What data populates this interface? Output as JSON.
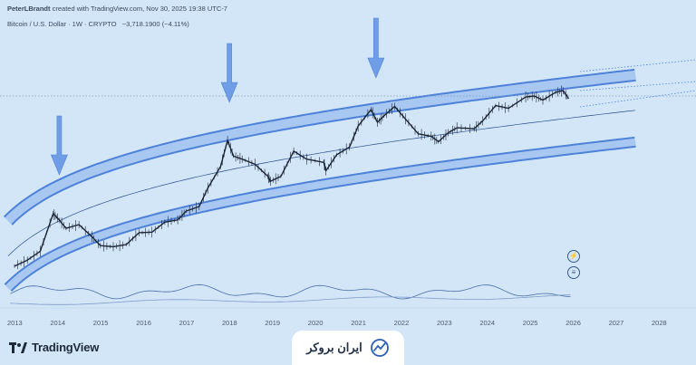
{
  "header": {
    "author": "PeterLBrandt",
    "created_text": "created with TradingView.com, Nov 30, 2025 19:38 UTC-7",
    "symbol_line": "Bitcoin / U.S. Dollar · 1W · CRYPTO",
    "change_value": "−3,718.1900 (−4.11%)"
  },
  "brand": {
    "name": "TradingView"
  },
  "watermark": {
    "name": "ایران بروکر"
  },
  "icons": [
    "lightning-icon",
    "globe-icon",
    "tradingview-logo-icon",
    "arrow-down-icon"
  ],
  "colors": {
    "background": "#d3e6f8",
    "band": "#4d82d8",
    "price": "#1b2535",
    "arrow": "#6f9ee6",
    "oscillator": "#5577b0"
  },
  "chart_data": {
    "type": "line",
    "title": "",
    "xlabel": "",
    "ylabel": "",
    "scale": "log",
    "x_ticks": [
      "2013",
      "2014",
      "2015",
      "2016",
      "2017",
      "2018",
      "2019",
      "2020",
      "2021",
      "2022",
      "2023",
      "2024",
      "2025",
      "2026",
      "2027",
      "2028"
    ],
    "series": [
      {
        "values": [
          [
            2013.0,
            110
          ],
          [
            2013.3,
            140
          ],
          [
            2013.6,
            200
          ],
          [
            2013.9,
            900
          ],
          [
            2014.0,
            760
          ],
          [
            2014.2,
            500
          ],
          [
            2014.5,
            580
          ],
          [
            2014.8,
            360
          ],
          [
            2015.0,
            250
          ],
          [
            2015.3,
            240
          ],
          [
            2015.6,
            260
          ],
          [
            2015.9,
            420
          ],
          [
            2016.2,
            430
          ],
          [
            2016.5,
            640
          ],
          [
            2016.8,
            700
          ],
          [
            2017.0,
            1000
          ],
          [
            2017.3,
            1200
          ],
          [
            2017.5,
            2500
          ],
          [
            2017.8,
            6000
          ],
          [
            2017.96,
            17000
          ],
          [
            2018.1,
            9000
          ],
          [
            2018.3,
            8000
          ],
          [
            2018.6,
            6500
          ],
          [
            2018.9,
            4000
          ],
          [
            2018.96,
            3300
          ],
          [
            2019.2,
            4000
          ],
          [
            2019.5,
            11000
          ],
          [
            2019.8,
            8000
          ],
          [
            2020.2,
            7000
          ],
          [
            2020.25,
            5000
          ],
          [
            2020.5,
            9500
          ],
          [
            2020.8,
            13000
          ],
          [
            2021.0,
            30000
          ],
          [
            2021.3,
            58000
          ],
          [
            2021.45,
            35000
          ],
          [
            2021.6,
            45000
          ],
          [
            2021.85,
            66000
          ],
          [
            2022.1,
            40000
          ],
          [
            2022.4,
            22000
          ],
          [
            2022.7,
            20000
          ],
          [
            2022.87,
            16000
          ],
          [
            2023.1,
            23000
          ],
          [
            2023.3,
            28000
          ],
          [
            2023.7,
            27000
          ],
          [
            2023.9,
            37000
          ],
          [
            2024.2,
            68000
          ],
          [
            2024.5,
            61000
          ],
          [
            2024.9,
            96000
          ],
          [
            2025.1,
            100000
          ],
          [
            2025.3,
            85000
          ],
          [
            2025.6,
            116000
          ],
          [
            2025.77,
            124000
          ],
          [
            2025.9,
            90000
          ]
        ]
      }
    ],
    "annotations": [
      "arrow down at 2014 top",
      "arrow down at 2018 top",
      "arrow down at 2021 top",
      "dotted horizontal line at 2025 high"
    ],
    "channel": "curved upward channel with upper and lower bands",
    "grid": false
  }
}
